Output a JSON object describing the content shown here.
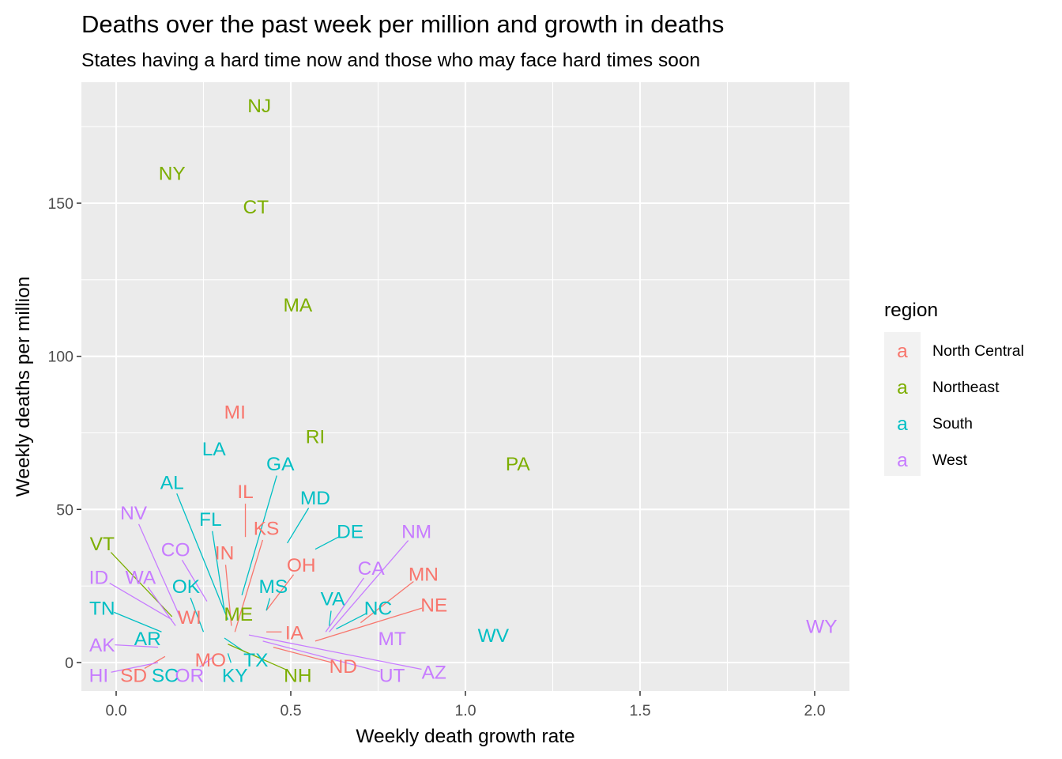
{
  "chart_data": {
    "type": "scatter",
    "title": "Deaths over the past week per million and growth in deaths",
    "subtitle": "States having a hard time now and those who may face hard times soon",
    "xlabel": "Weekly death growth rate",
    "ylabel": "Weekly deaths per million",
    "xlim": [
      -0.1,
      2.1
    ],
    "ylim": [
      -8,
      190
    ],
    "x_ticks": [
      0.0,
      0.5,
      1.0,
      1.5,
      2.0
    ],
    "x_tick_labels": [
      "0.0",
      "0.5",
      "1.0",
      "1.5",
      "2.0"
    ],
    "y_ticks": [
      0,
      50,
      100,
      150
    ],
    "y_tick_labels": [
      "0",
      "50",
      "100",
      "150"
    ],
    "grid": true,
    "legend": {
      "title": "region",
      "position": "right",
      "key_glyph": "a",
      "entries": [
        {
          "name": "North Central",
          "color": "#F8766D"
        },
        {
          "name": "Northeast",
          "color": "#7CAE00"
        },
        {
          "name": "South",
          "color": "#00BFC4"
        },
        {
          "name": "West",
          "color": "#C77CFF"
        }
      ]
    },
    "colors": {
      "North Central": "#F8766D",
      "Northeast": "#7CAE00",
      "South": "#00BFC4",
      "West": "#C77CFF"
    },
    "points": [
      {
        "state": "NJ",
        "region": "Northeast",
        "x": 0.41,
        "y": 182,
        "lx": 0.41,
        "ly": 182
      },
      {
        "state": "NY",
        "region": "Northeast",
        "x": 0.16,
        "y": 160,
        "lx": 0.16,
        "ly": 160
      },
      {
        "state": "CT",
        "region": "Northeast",
        "x": 0.4,
        "y": 149,
        "lx": 0.4,
        "ly": 149
      },
      {
        "state": "MA",
        "region": "Northeast",
        "x": 0.52,
        "y": 117,
        "lx": 0.52,
        "ly": 117
      },
      {
        "state": "MI",
        "region": "North Central",
        "x": 0.34,
        "y": 82,
        "lx": 0.34,
        "ly": 82
      },
      {
        "state": "RI",
        "region": "Northeast",
        "x": 0.57,
        "y": 74,
        "lx": 0.57,
        "ly": 74
      },
      {
        "state": "LA",
        "region": "South",
        "x": 0.28,
        "y": 70,
        "lx": 0.28,
        "ly": 70
      },
      {
        "state": "PA",
        "region": "Northeast",
        "x": 1.15,
        "y": 65,
        "lx": 1.15,
        "ly": 65
      },
      {
        "state": "GA",
        "region": "South",
        "x": 0.36,
        "y": 22,
        "lx": 0.47,
        "ly": 65
      },
      {
        "state": "AL",
        "region": "South",
        "x": 0.32,
        "y": 14,
        "lx": 0.16,
        "ly": 59
      },
      {
        "state": "IL",
        "region": "North Central",
        "x": 0.37,
        "y": 41,
        "lx": 0.37,
        "ly": 56
      },
      {
        "state": "MD",
        "region": "South",
        "x": 0.49,
        "y": 39,
        "lx": 0.57,
        "ly": 54
      },
      {
        "state": "FL",
        "region": "South",
        "x": 0.31,
        "y": 17,
        "lx": 0.27,
        "ly": 47
      },
      {
        "state": "NV",
        "region": "West",
        "x": 0.19,
        "y": 13,
        "lx": 0.05,
        "ly": 49
      },
      {
        "state": "KS",
        "region": "North Central",
        "x": 0.34,
        "y": 10,
        "lx": 0.43,
        "ly": 44
      },
      {
        "state": "DE",
        "region": "South",
        "x": 0.57,
        "y": 37,
        "lx": 0.67,
        "ly": 43
      },
      {
        "state": "NM",
        "region": "West",
        "x": 0.61,
        "y": 10,
        "lx": 0.86,
        "ly": 43
      },
      {
        "state": "VT",
        "region": "Northeast",
        "x": 0.16,
        "y": 15,
        "lx": -0.04,
        "ly": 39
      },
      {
        "state": "CO",
        "region": "West",
        "x": 0.26,
        "y": 20,
        "lx": 0.17,
        "ly": 37
      },
      {
        "state": "IN",
        "region": "North Central",
        "x": 0.33,
        "y": 12,
        "lx": 0.31,
        "ly": 36
      },
      {
        "state": "OH",
        "region": "North Central",
        "x": 0.43,
        "y": 17,
        "lx": 0.53,
        "ly": 32
      },
      {
        "state": "CA",
        "region": "West",
        "x": 0.6,
        "y": 10,
        "lx": 0.73,
        "ly": 31
      },
      {
        "state": "MN",
        "region": "North Central",
        "x": 0.7,
        "y": 13,
        "lx": 0.88,
        "ly": 29
      },
      {
        "state": "ID",
        "region": "West",
        "x": 0.16,
        "y": 14,
        "lx": -0.05,
        "ly": 28
      },
      {
        "state": "WA",
        "region": "West",
        "x": 0.17,
        "y": 12,
        "lx": 0.07,
        "ly": 28
      },
      {
        "state": "OK",
        "region": "South",
        "x": 0.25,
        "y": 10,
        "lx": 0.2,
        "ly": 25
      },
      {
        "state": "MS",
        "region": "South",
        "x": 0.43,
        "y": 17,
        "lx": 0.45,
        "ly": 25
      },
      {
        "state": "VA",
        "region": "South",
        "x": 0.61,
        "y": 12,
        "lx": 0.62,
        "ly": 21
      },
      {
        "state": "NE",
        "region": "North Central",
        "x": 0.57,
        "y": 7,
        "lx": 0.91,
        "ly": 19
      },
      {
        "state": "TN",
        "region": "South",
        "x": 0.13,
        "y": 10,
        "lx": -0.04,
        "ly": 18
      },
      {
        "state": "NC",
        "region": "South",
        "x": 0.63,
        "y": 11,
        "lx": 0.75,
        "ly": 18
      },
      {
        "state": "WI",
        "region": "North Central",
        "x": 0.21,
        "y": 14,
        "lx": 0.21,
        "ly": 15
      },
      {
        "state": "ME",
        "region": "Northeast",
        "x": 0.35,
        "y": 15,
        "lx": 0.35,
        "ly": 16
      },
      {
        "state": "WV",
        "region": "South",
        "x": 1.08,
        "y": 9,
        "lx": 1.08,
        "ly": 9
      },
      {
        "state": "WY",
        "region": "West",
        "x": 2.02,
        "y": 12,
        "lx": 2.02,
        "ly": 12
      },
      {
        "state": "IA",
        "region": "North Central",
        "x": 0.43,
        "y": 10,
        "lx": 0.51,
        "ly": 10
      },
      {
        "state": "MT",
        "region": "West",
        "x": 0.79,
        "y": 8,
        "lx": 0.79,
        "ly": 8
      },
      {
        "state": "AK",
        "region": "West",
        "x": 0.12,
        "y": 5,
        "lx": -0.04,
        "ly": 6
      },
      {
        "state": "AR",
        "region": "South",
        "x": 0.1,
        "y": 6,
        "lx": 0.09,
        "ly": 8
      },
      {
        "state": "MO",
        "region": "North Central",
        "x": 0.26,
        "y": 0,
        "lx": 0.27,
        "ly": 1
      },
      {
        "state": "TX",
        "region": "South",
        "x": 0.31,
        "y": 8,
        "lx": 0.4,
        "ly": 1
      },
      {
        "state": "ND",
        "region": "North Central",
        "x": 0.45,
        "y": 5,
        "lx": 0.65,
        "ly": -1
      },
      {
        "state": "AZ",
        "region": "West",
        "x": 0.38,
        "y": 9,
        "lx": 0.91,
        "ly": -3
      },
      {
        "state": "UT",
        "region": "West",
        "x": 0.42,
        "y": 7,
        "lx": 0.79,
        "ly": -4
      },
      {
        "state": "NH",
        "region": "Northeast",
        "x": 0.32,
        "y": 6,
        "lx": 0.52,
        "ly": -4
      },
      {
        "state": "KY",
        "region": "South",
        "x": 0.32,
        "y": 3,
        "lx": 0.34,
        "ly": -4
      },
      {
        "state": "OR",
        "region": "West",
        "x": 0.28,
        "y": 2,
        "lx": 0.21,
        "ly": -4
      },
      {
        "state": "SC",
        "region": "South",
        "x": 0.15,
        "y": 0,
        "lx": 0.14,
        "ly": -4
      },
      {
        "state": "SD",
        "region": "North Central",
        "x": 0.14,
        "y": 2,
        "lx": 0.05,
        "ly": -4
      },
      {
        "state": "HI",
        "region": "West",
        "x": 0.12,
        "y": 0,
        "lx": -0.05,
        "ly": -4
      }
    ]
  }
}
